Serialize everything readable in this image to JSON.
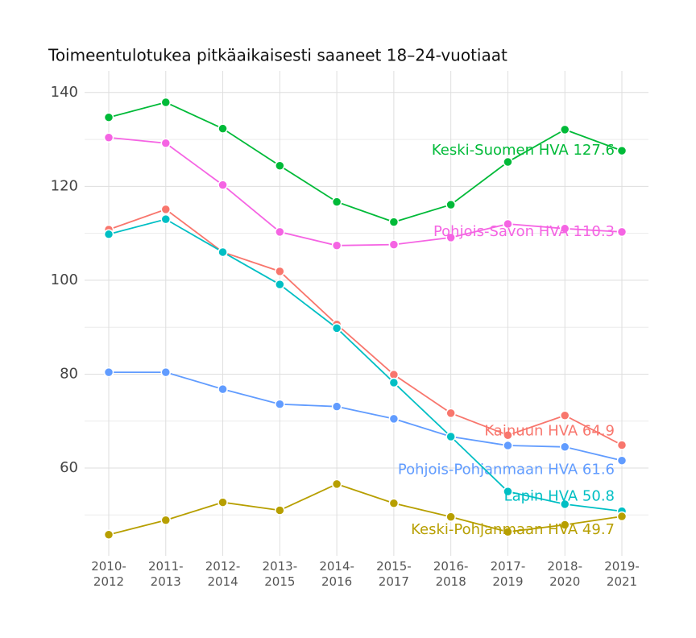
{
  "chart_data": {
    "type": "line",
    "title": "Toimeentulotukea pitkäaikaisesti saaneet 18–24-vuotiaat",
    "categories": [
      "2010-2012",
      "2011-2013",
      "2012-2014",
      "2013-2015",
      "2014-2016",
      "2015-2017",
      "2016-2018",
      "2017-2019",
      "2018-2020",
      "2019-2021"
    ],
    "ylim": [
      41.3,
      144.6
    ],
    "yticks": [
      60,
      80,
      100,
      120,
      140
    ],
    "minor_yticks": [
      50,
      70,
      90,
      110,
      130
    ],
    "grid": true,
    "series": [
      {
        "name": "Keski-Suomen HVA",
        "label": "Keski-Suomen HVA 127.6",
        "color": "#00ba38",
        "values": [
          134.7,
          137.9,
          132.3,
          124.4,
          116.7,
          112.4,
          116.1,
          125.2,
          132.1,
          127.6
        ]
      },
      {
        "name": "Pohjois-Savon HVA",
        "label": "Pohjois-Savon HVA 110.3",
        "color": "#f564e3",
        "values": [
          130.4,
          129.2,
          120.3,
          110.3,
          107.4,
          107.6,
          109.1,
          112.0,
          111.0,
          110.3
        ]
      },
      {
        "name": "Kainuun HVA",
        "label": "Kainuun HVA 64.9",
        "color": "#f8766d",
        "values": [
          110.8,
          115.1,
          106.0,
          101.9,
          90.6,
          79.9,
          71.7,
          67.0,
          71.2,
          64.9
        ]
      },
      {
        "name": "Pohjois-Pohjanmaan HVA",
        "label": "Pohjois-Pohjanmaan HVA 61.6",
        "color": "#619cff",
        "values": [
          80.4,
          80.4,
          76.8,
          73.6,
          73.1,
          70.5,
          66.7,
          64.8,
          64.5,
          61.6
        ]
      },
      {
        "name": "Lapin HVA",
        "label": "Lapin HVA 50.8",
        "color": "#00bfc4",
        "values": [
          109.8,
          113.0,
          106.0,
          99.1,
          89.8,
          78.2,
          66.7,
          55.0,
          52.3,
          50.8
        ]
      },
      {
        "name": "Keski-Pohjanmaan HVA",
        "label": "Keski-Pohjanmaan HVA 49.7",
        "color": "#b79f00",
        "values": [
          45.8,
          48.9,
          52.7,
          51.0,
          56.6,
          52.5,
          49.6,
          46.4,
          47.9,
          49.7
        ]
      }
    ]
  }
}
